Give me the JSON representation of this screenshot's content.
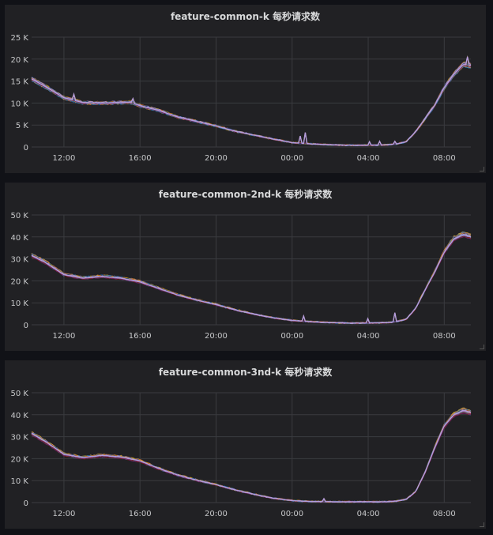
{
  "panels": [
    {
      "title": "feature-common-k 每秒请求数"
    },
    {
      "title": "feature-common-2nd-k 每秒请求数"
    },
    {
      "title": "feature-common-3nd-k 每秒请求数"
    }
  ],
  "colors": {
    "background": "#111217",
    "panel": "#212124",
    "grid": "#3a3b3f",
    "tick_text": "#c7c8ca",
    "series": [
      "#b39ddb",
      "#7eb26d",
      "#eab839",
      "#6ed0e0",
      "#ef843c",
      "#e24d42",
      "#1f78c1",
      "#ba43a9",
      "#705da0",
      "#508642",
      "#cca300",
      "#447ebc",
      "#c15c17",
      "#890f02",
      "#0a437c",
      "#6d1f62"
    ]
  },
  "chart_data": [
    {
      "type": "line",
      "title": "feature-common-k 每秒请求数",
      "xlabel": "",
      "ylabel": "",
      "x_ticks": [
        "12:00",
        "16:00",
        "20:00",
        "00:00",
        "04:00",
        "08:00"
      ],
      "x_tick_hours": [
        12,
        16,
        20,
        24,
        28,
        32
      ],
      "xlim_hours": [
        10.3,
        33.4
      ],
      "y_ticks": [
        "0",
        "5 K",
        "10 K",
        "15 K",
        "20 K",
        "25 K"
      ],
      "y_tick_values": [
        0,
        5000,
        10000,
        15000,
        20000,
        25000
      ],
      "ylim": [
        0,
        25000
      ],
      "grid": true,
      "legend": "none",
      "series_count": 16,
      "x_hours": [
        10.3,
        11,
        12,
        13,
        14,
        15,
        15.5,
        16,
        17,
        18,
        19,
        20,
        21,
        22,
        23,
        24,
        25,
        26,
        27,
        28,
        29,
        29.5,
        30,
        30.5,
        31,
        31.5,
        32,
        32.5,
        33,
        33.4
      ],
      "values": [
        15500,
        13800,
        11200,
        10100,
        10000,
        10100,
        10200,
        9400,
        8300,
        6800,
        5800,
        4800,
        3600,
        2700,
        1800,
        1000,
        700,
        500,
        400,
        400,
        500,
        700,
        1200,
        3500,
        6500,
        9500,
        13500,
        16500,
        18800,
        18500
      ],
      "spikes": [
        {
          "hour": 12.5,
          "value": 12000
        },
        {
          "hour": 15.6,
          "value": 11000
        },
        {
          "hour": 24.4,
          "value": 2500
        },
        {
          "hour": 24.7,
          "value": 3300
        },
        {
          "hour": 28.1,
          "value": 1200
        },
        {
          "hour": 28.6,
          "value": 1300
        },
        {
          "hour": 29.4,
          "value": 1300
        },
        {
          "hour": 33.2,
          "value": 20500
        }
      ]
    },
    {
      "type": "line",
      "title": "feature-common-2nd-k 每秒请求数",
      "xlabel": "",
      "ylabel": "",
      "x_ticks": [
        "12:00",
        "16:00",
        "20:00",
        "00:00",
        "04:00",
        "08:00"
      ],
      "x_tick_hours": [
        12,
        16,
        20,
        24,
        28,
        32
      ],
      "xlim_hours": [
        10.3,
        33.4
      ],
      "y_ticks": [
        "0",
        "10 K",
        "20 K",
        "30 K",
        "40 K",
        "50 K"
      ],
      "y_tick_values": [
        0,
        10000,
        20000,
        30000,
        40000,
        50000
      ],
      "ylim": [
        0,
        50000
      ],
      "grid": true,
      "legend": "none",
      "series_count": 16,
      "x_hours": [
        10.3,
        11,
        12,
        13,
        14,
        15,
        16,
        17,
        18,
        19,
        20,
        21,
        22,
        23,
        24,
        25,
        26,
        27,
        28,
        29,
        29.5,
        30,
        30.5,
        31,
        31.5,
        32,
        32.5,
        33,
        33.4
      ],
      "values": [
        31500,
        28500,
        22800,
        21200,
        22000,
        21200,
        19500,
        16500,
        13500,
        11200,
        9200,
        6800,
        4800,
        3200,
        2000,
        1400,
        1000,
        800,
        800,
        1000,
        1500,
        2500,
        7500,
        16000,
        24000,
        33000,
        39000,
        41000,
        40000
      ],
      "spikes": [
        {
          "hour": 24.6,
          "value": 4000
        },
        {
          "hour": 28.0,
          "value": 2800
        },
        {
          "hour": 29.4,
          "value": 5500
        }
      ]
    },
    {
      "type": "line",
      "title": "feature-common-3nd-k 每秒请求数",
      "xlabel": "",
      "ylabel": "",
      "x_ticks": [
        "12:00",
        "16:00",
        "20:00",
        "00:00",
        "04:00",
        "08:00"
      ],
      "x_tick_hours": [
        12,
        16,
        20,
        24,
        28,
        32
      ],
      "xlim_hours": [
        10.3,
        33.4
      ],
      "y_ticks": [
        "0",
        "10 K",
        "20 K",
        "30 K",
        "40 K",
        "50 K"
      ],
      "y_tick_values": [
        0,
        10000,
        20000,
        30000,
        40000,
        50000
      ],
      "ylim": [
        0,
        50000
      ],
      "grid": true,
      "legend": "none",
      "series_count": 16,
      "x_hours": [
        10.3,
        11,
        12,
        13,
        14,
        15,
        16,
        17,
        18,
        19,
        20,
        21,
        22,
        23,
        24,
        25,
        26,
        27,
        28,
        29,
        29.5,
        30,
        30.5,
        31,
        31.5,
        32,
        32.5,
        33,
        33.4
      ],
      "values": [
        31500,
        28000,
        22000,
        20500,
        21500,
        20800,
        19000,
        15500,
        12500,
        10200,
        8200,
        5800,
        3800,
        2000,
        900,
        500,
        400,
        350,
        350,
        400,
        700,
        1500,
        5000,
        14000,
        25000,
        35000,
        40000,
        42000,
        41000
      ],
      "spikes": [
        {
          "hour": 25.7,
          "value": 1800
        }
      ]
    }
  ]
}
